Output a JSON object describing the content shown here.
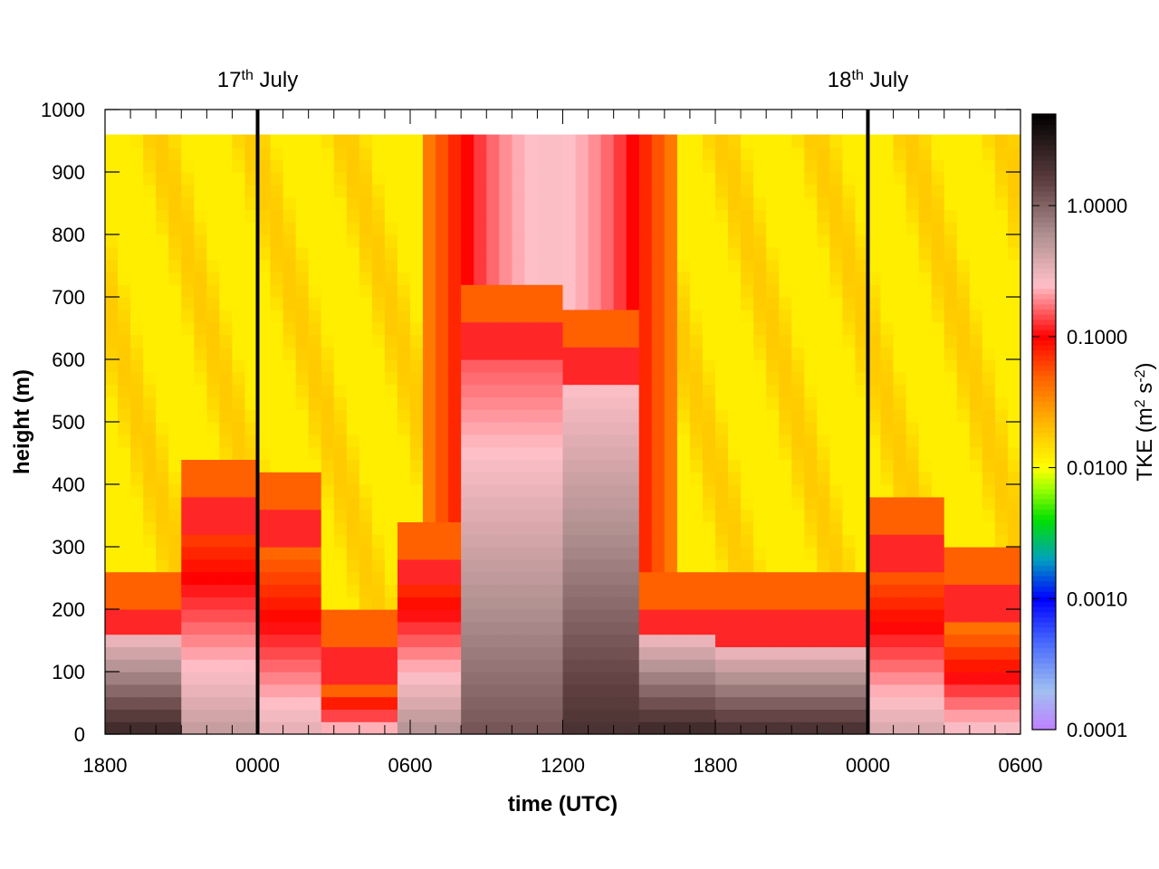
{
  "chart_data": {
    "type": "heatmap",
    "xlabel": "time (UTC)",
    "ylabel": "height (m)",
    "x_ticks": [
      "1800",
      "0000",
      "0600",
      "1200",
      "1800",
      "0000",
      "0600"
    ],
    "y_ticks": [
      "0",
      "100",
      "200",
      "300",
      "400",
      "500",
      "600",
      "700",
      "800",
      "900",
      "1000"
    ],
    "ylim": [
      0,
      1000
    ],
    "x_range_hours": [
      0,
      36
    ],
    "data_top_height": 960,
    "colorbar": {
      "title_parts": [
        "TKE (m",
        "2",
        " s",
        "-2",
        ")"
      ],
      "scale": "log",
      "range": [
        0.0001,
        5
      ],
      "tick_values": [
        0.0001,
        0.001,
        0.01,
        0.1,
        1.0
      ],
      "tick_labels": [
        "0.0001",
        "0.0010",
        "0.0100",
        "0.1000",
        "1.0000"
      ],
      "stops": [
        {
          "v": 0.0001,
          "color": "#c080ff"
        },
        {
          "v": 0.0002,
          "color": "#a0c0f0"
        },
        {
          "v": 0.0005,
          "color": "#4060ff"
        },
        {
          "v": 0.001,
          "color": "#0000ff"
        },
        {
          "v": 0.002,
          "color": "#00a0c0"
        },
        {
          "v": 0.004,
          "color": "#00e000"
        },
        {
          "v": 0.007,
          "color": "#a0ff00"
        },
        {
          "v": 0.01,
          "color": "#ffff00"
        },
        {
          "v": 0.02,
          "color": "#ffc000"
        },
        {
          "v": 0.05,
          "color": "#ff6000"
        },
        {
          "v": 0.1,
          "color": "#ff0000"
        },
        {
          "v": 0.25,
          "color": "#ffc0c8"
        },
        {
          "v": 0.6,
          "color": "#b09090"
        },
        {
          "v": 1.5,
          "color": "#604040"
        },
        {
          "v": 5.0,
          "color": "#000000"
        }
      ]
    },
    "day_markers": [
      {
        "hour": 6,
        "label": "17",
        "sup": "th",
        "suffix": " July"
      },
      {
        "hour": 30,
        "label": "18",
        "sup": "th",
        "suffix": " July"
      }
    ],
    "tke_model": {
      "surface_layer": [
        {
          "h0": 0,
          "h1": 3,
          "top": 150,
          "value": 2.5
        },
        {
          "h0": 3,
          "h1": 6,
          "top": 320,
          "value": 0.5
        },
        {
          "h0": 6,
          "h1": 8.5,
          "top": 300,
          "value": 0.35
        },
        {
          "h0": 8.5,
          "h1": 11.5,
          "top": 80,
          "value": 0.3
        },
        {
          "h0": 11.5,
          "h1": 14,
          "top": 230,
          "value": 0.6
        },
        {
          "h0": 14,
          "h1": 18,
          "top": 600,
          "value": 1.2
        },
        {
          "h0": 18,
          "h1": 21,
          "top": 560,
          "value": 2.0
        },
        {
          "h0": 21,
          "h1": 24,
          "top": 150,
          "value": 2.5
        },
        {
          "h0": 24,
          "h1": 30,
          "top": 140,
          "value": 2.2
        },
        {
          "h0": 30,
          "h1": 33,
          "top": 260,
          "value": 0.4
        },
        {
          "h0": 33,
          "h1": 36,
          "top": 180,
          "value": 0.3
        }
      ]
    }
  }
}
